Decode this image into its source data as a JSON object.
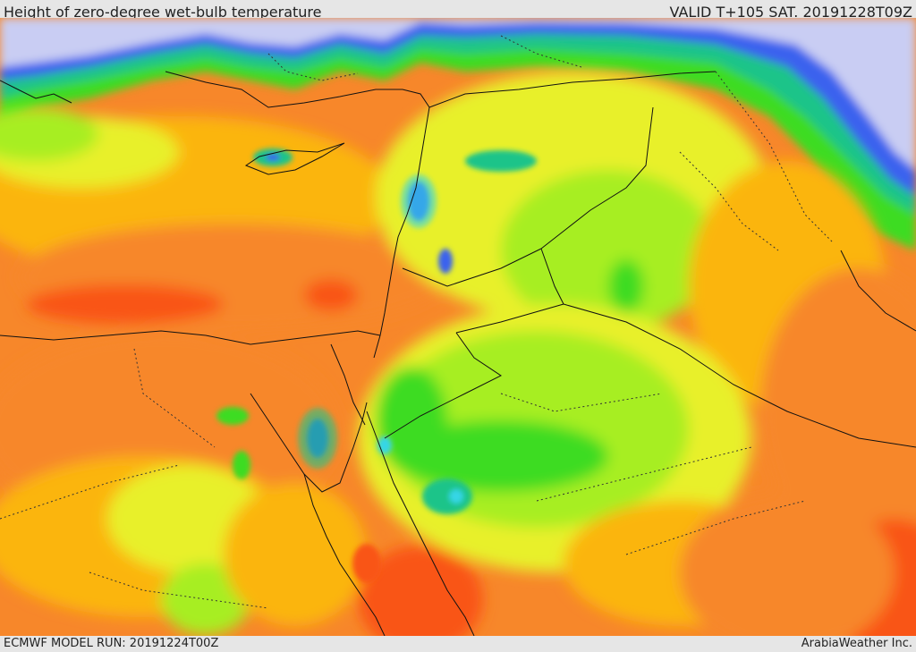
{
  "header": {
    "title": "Height of zero-degree wet-bulb temperature",
    "valid_time": "VALID T+105 SAT. 20191228T09Z"
  },
  "footer": {
    "model_run": "ECMWF MODEL RUN: 20191224T00Z",
    "credit": "ArabiaWeather Inc."
  },
  "map": {
    "colors": {
      "red": "#f95412",
      "orange": "#f7872a",
      "amber": "#fbb511",
      "yellow": "#e8f02c",
      "lime": "#a7ee24",
      "green": "#3ddc24",
      "teal": "#1cc489",
      "cyan": "#34d6e6",
      "blue": "#3a62ee",
      "lavender": "#c9cdf3"
    }
  }
}
